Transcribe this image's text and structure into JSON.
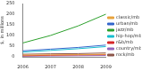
{
  "chart_data": {
    "type": "line",
    "y_label": "$, in millions",
    "categories": [
      "2006",
      "2007",
      "2008",
      "2009"
    ],
    "series": [
      {
        "name": "classic/mb",
        "color": "#e8a33d",
        "values": [
          8,
          9,
          10,
          12
        ]
      },
      {
        "name": "urban/mb",
        "color": "#3366cc",
        "values": [
          28,
          36,
          44,
          55
        ]
      },
      {
        "name": "jazz/mb",
        "color": "#2ca02c",
        "values": [
          65,
          100,
          145,
          200
        ]
      },
      {
        "name": "hip-hop/mb",
        "color": "#17becf",
        "values": [
          22,
          30,
          38,
          48
        ]
      },
      {
        "name": "r&b/mb",
        "color": "#d62728",
        "values": [
          5,
          7,
          9,
          10
        ]
      },
      {
        "name": "country/mb",
        "color": "#9467bd",
        "values": [
          3,
          4,
          5,
          6
        ]
      },
      {
        "name": "rock/mb",
        "color": "#8c564b",
        "values": [
          12,
          14,
          15,
          18
        ]
      }
    ],
    "ylim": [
      0,
      250
    ],
    "yticks": [
      0,
      50,
      100,
      150,
      200,
      250
    ],
    "grid": false,
    "legend": "right"
  }
}
